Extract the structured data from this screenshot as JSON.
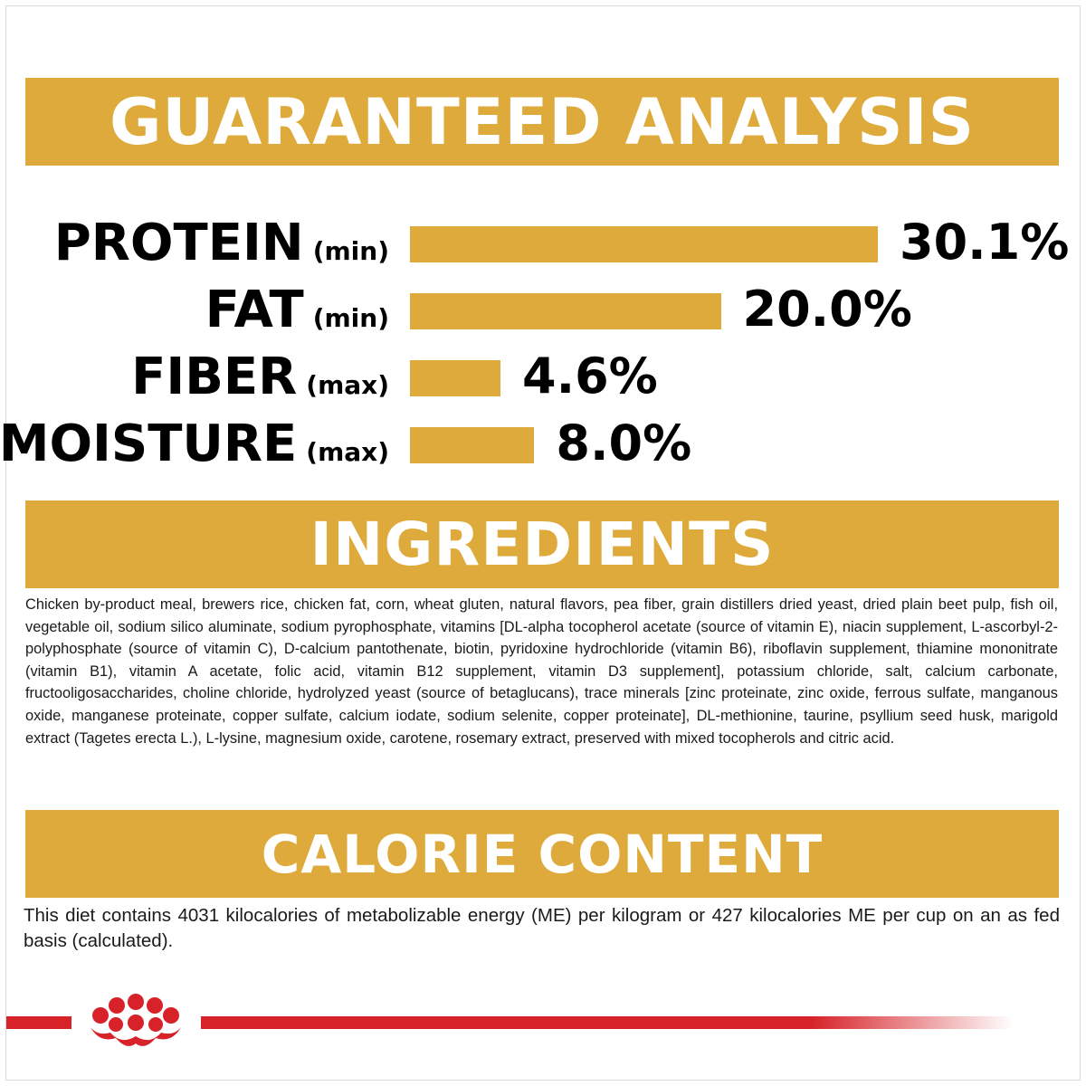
{
  "colors": {
    "gold": "#deaa3b",
    "brand_red": "#d62228",
    "text": "#000000"
  },
  "sections": {
    "guaranteed_analysis": "GUARANTEED ANALYSIS",
    "ingredients": "INGREDIENTS",
    "calorie_content": "CALORIE CONTENT"
  },
  "analysis": [
    {
      "name": "PROTEIN",
      "qualifier": "(min)",
      "value_text": "30.1%",
      "value": 30.1
    },
    {
      "name": "FAT",
      "qualifier": "(min)",
      "value_text": "20.0%",
      "value": 20.0
    },
    {
      "name": "FIBER",
      "qualifier": "(max)",
      "value_text": "4.6%",
      "value": 4.6
    },
    {
      "name": "MOISTURE",
      "qualifier": "(max)",
      "value_text": "8.0%",
      "value": 8.0
    }
  ],
  "ingredients_text": "Chicken by-product meal, brewers rice, chicken fat, corn, wheat gluten, natural flavors, pea fiber, grain distillers dried yeast, dried plain beet pulp, fish oil, vegetable oil, sodium silico aluminate, sodium pyrophosphate, vitamins [DL-alpha tocopherol acetate (source of vitamin E), niacin supplement, L-ascorbyl-2-polyphosphate (source of vitamin C), D-calcium pantothenate, biotin, pyridoxine hydrochloride (vitamin B6), riboflavin supplement, thiamine mononitrate (vitamin B1), vitamin A acetate, folic acid, vitamin B12 supplement, vitamin D3 supplement], potassium chloride, salt, calcium carbonate, fructooligosaccharides, choline chloride, hydrolyzed yeast (source of betaglucans), trace minerals [zinc proteinate, zinc oxide, ferrous sulfate, manganous oxide, manganese proteinate, copper sulfate, calcium iodate, sodium selenite, copper proteinate], DL-methionine, taurine, psyllium seed husk, marigold extract (Tagetes erecta L.), L-lysine, magnesium oxide, carotene, rosemary extract, preserved with mixed tocopherols and citric acid.",
  "calorie_text": "This diet contains 4031 kilocalories of metabolizable energy (ME) per kilogram or 427 kilocalories ME per cup on an as fed basis (calculated).",
  "footer": {
    "logo_icon": "crown-icon"
  }
}
